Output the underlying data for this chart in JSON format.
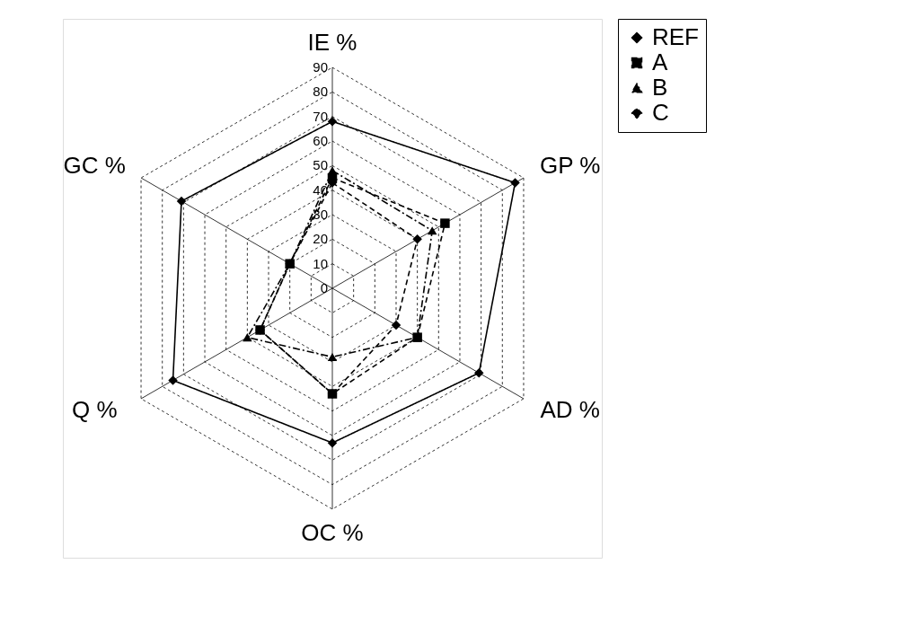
{
  "chart_data": {
    "type": "radar",
    "categories": [
      "IE %",
      "GP %",
      "AD %",
      "OC %",
      "Q %",
      "GC %"
    ],
    "ylim": [
      0,
      90
    ],
    "yticks": [
      0,
      10,
      20,
      30,
      40,
      50,
      60,
      70,
      80,
      90
    ],
    "grid": true,
    "legend": "right",
    "series": [
      {
        "name": "REF",
        "color": "#000000",
        "marker": "diamond",
        "line_style": "solid",
        "values": [
          68,
          86,
          69,
          63,
          75,
          71
        ]
      },
      {
        "name": "A",
        "color": "#000000",
        "marker": "square",
        "line_style": "dashed",
        "values": [
          45,
          53,
          40,
          43,
          34,
          20
        ]
      },
      {
        "name": "B",
        "color": "#000000",
        "marker": "triangle",
        "line_style": "dashdot",
        "values": [
          48,
          47,
          40,
          28,
          40,
          20
        ]
      },
      {
        "name": "C",
        "color": "#000000",
        "marker": "diamond",
        "line_style": "dashed",
        "values": [
          43,
          40,
          30,
          43,
          34,
          20
        ]
      }
    ]
  }
}
